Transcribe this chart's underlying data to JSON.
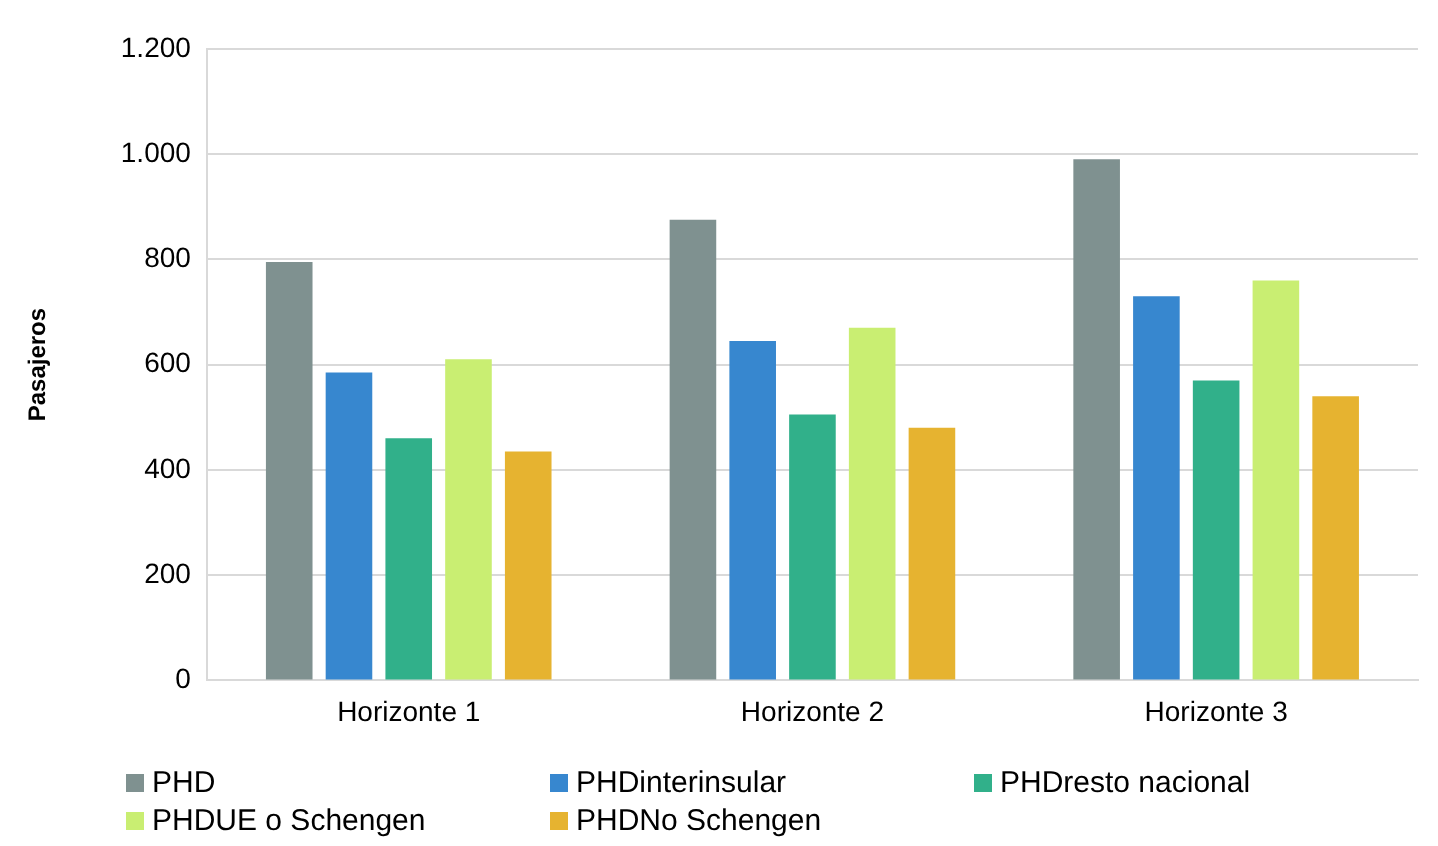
{
  "chart_data": {
    "type": "bar",
    "ylabel": "Pasajeros",
    "categories": [
      "Horizonte 1",
      "Horizonte 2",
      "Horizonte 3"
    ],
    "series": [
      {
        "name": "PHD",
        "color": "#7f9190",
        "values": [
          795,
          875,
          990
        ]
      },
      {
        "name": "PHDinterinsular",
        "color": "#3787cf",
        "values": [
          585,
          645,
          730
        ]
      },
      {
        "name": "PHDresto nacional",
        "color": "#31b08a",
        "values": [
          460,
          505,
          570
        ]
      },
      {
        "name": "PHDUE o Schengen",
        "color": "#c9ee72",
        "values": [
          610,
          670,
          760
        ]
      },
      {
        "name": "PHDNo Schengen",
        "color": "#e6b330",
        "values": [
          435,
          480,
          540
        ]
      }
    ],
    "ylim": [
      0,
      1200
    ],
    "yticks": [
      0,
      200,
      400,
      600,
      800,
      {
        "value": 1000,
        "label": "1.000"
      },
      {
        "value": 1200,
        "label": "1.200"
      }
    ],
    "grid": "y",
    "legend": "bottom"
  }
}
